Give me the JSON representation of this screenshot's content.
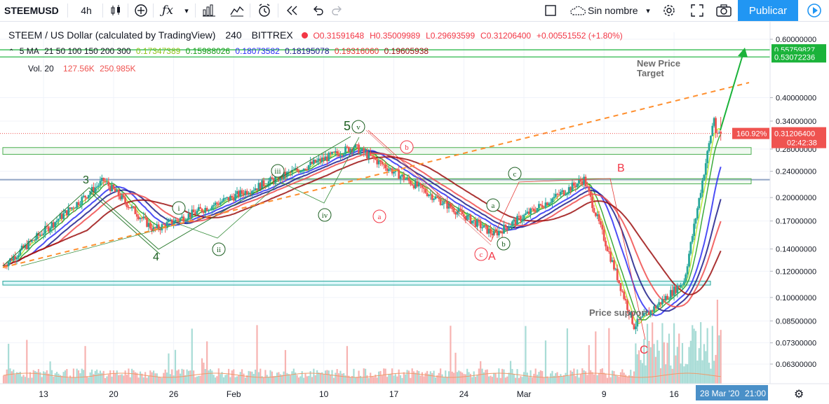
{
  "toolbar": {
    "symbol": "STEEMUSD",
    "interval": "4h",
    "layout_name": "Sin nombre",
    "publish": "Publicar",
    "icons": [
      "chart-type-icon",
      "add-indicator-icon",
      "fx-indicator-icon",
      "chevron-down-icon",
      "compare-icon",
      "templates-icon",
      "alert-icon",
      "replay-icon",
      "undo-icon",
      "redo-icon",
      "square-icon",
      "cloud-icon",
      "gear-icon",
      "fullscreen-icon",
      "camera-icon",
      "play-icon"
    ]
  },
  "legend": {
    "title": "STEEM / US Dollar (calculated by TradingView)",
    "resolution": "240",
    "exchange": "BITTREX",
    "ohlc": {
      "o": "O0.31591648",
      "h": "H0.35009989",
      "l": "L0.29693599",
      "c": "C0.31206400",
      "chg": "+0.00551552 (+1.80%)"
    },
    "ma_label": "5 MA",
    "ma_params": "21 50 100 150 200 300",
    "ma_values": [
      "0.17347389",
      "0.15988026",
      "0.18073582",
      "0.18195078",
      "0.19316060",
      "0.19605938"
    ],
    "ma_colors": [
      "#b5e61d",
      "#1a9c1a",
      "#2d2ff5",
      "#1d1d8a",
      "#f04c4c",
      "#9c1010"
    ],
    "vol_label": "Vol. 20",
    "vol_values": [
      "127.56K",
      "250.985K"
    ]
  },
  "colors": {
    "up": "#26a69a",
    "down": "#ef5350",
    "accent": "#2196f3",
    "label_red": "#f23645",
    "projection_green": "#1bb33a",
    "resistance_orange": "#ff8f2e"
  },
  "axis": {
    "price_ticks": [
      "0.60000000",
      "0.55759827",
      "0.53072236",
      "0.40000000",
      "0.34000000",
      "0.28000000",
      "0.24000000",
      "0.20000000",
      "0.17000000",
      "0.14000000",
      "0.12000000",
      "0.10000000",
      "0.08500000",
      "0.07300000",
      "0.06300000"
    ],
    "price_ticks_highlight": [
      "0.55759827",
      "0.53072236"
    ],
    "time_ticks": [
      "13",
      "20",
      "26",
      "Feb",
      "10",
      "17",
      "24",
      "Mar",
      "9",
      "16"
    ],
    "current_badge": "160.92%",
    "current_price": "0.31206400",
    "countdown": "02:42:38",
    "time_badge": "28 Mar '20",
    "time_right": "21:00"
  },
  "annotations": {
    "new_target": [
      "New Price",
      "Target"
    ],
    "support": "Price support",
    "wave_black": [
      "3",
      "4",
      "5"
    ],
    "wave_green": [
      "i",
      "ii",
      "iii",
      "iv",
      "v",
      "a",
      "b",
      "c"
    ],
    "wave_red": [
      "b",
      "a",
      "c",
      "A",
      "B",
      "C"
    ]
  },
  "chart_data": {
    "type": "candlestick",
    "symbol": "STEEMUSD",
    "timeframe": "4h",
    "y_scale": "log",
    "ylim": [
      0.058,
      0.63
    ],
    "x_ticks": [
      "13",
      "20",
      "26",
      "Feb",
      "10",
      "17",
      "24",
      "Mar",
      "9",
      "16"
    ],
    "key_points": [
      {
        "x": "Jan 9",
        "y": 0.125
      },
      {
        "x": "Jan 19",
        "y": 0.225
      },
      {
        "x": "Jan 24",
        "y": 0.16
      },
      {
        "x": "Feb 13",
        "y": 0.285
      },
      {
        "x": "Feb 27",
        "y": 0.155
      },
      {
        "x": "Mar 7",
        "y": 0.227
      },
      {
        "x": "Mar 12",
        "y": 0.082
      },
      {
        "x": "Mar 17",
        "y": 0.112
      },
      {
        "x": "Mar 20",
        "y": 0.35
      }
    ],
    "last_close": 0.312064,
    "moving_averages": {
      "periods": [
        21,
        50,
        100,
        150,
        200,
        300
      ],
      "last_values": [
        0.17347389,
        0.15988026,
        0.18073582,
        0.18195078,
        0.1931606,
        0.19605938
      ]
    },
    "horizontal_levels": [
      0.55759827,
      0.53072236
    ],
    "zones": [
      [
        0.27,
        0.283
      ],
      [
        0.22,
        0.228
      ],
      [
        0.109,
        0.112
      ]
    ],
    "volume_last": [
      127560,
      250985
    ]
  }
}
